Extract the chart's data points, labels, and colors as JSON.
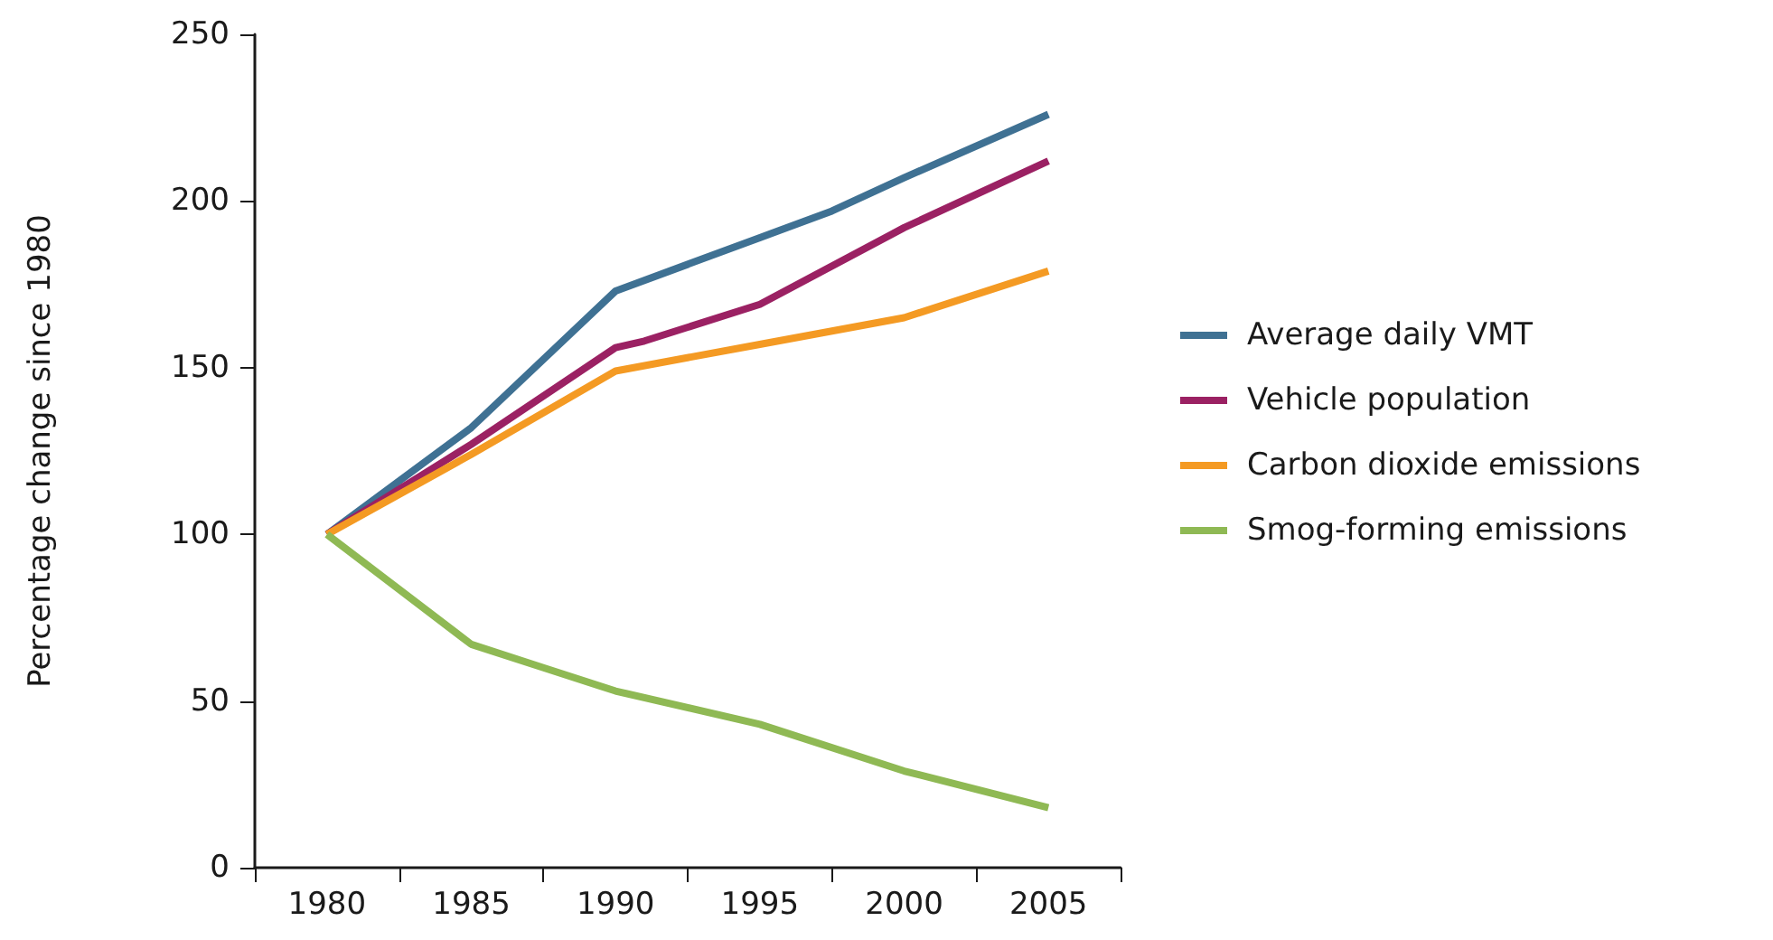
{
  "chart_data": {
    "type": "line",
    "ylabel": "Percentage change since 1980",
    "xlim": [
      1977.5,
      2007.5
    ],
    "xticks": [
      {
        "value": 1977.5,
        "label": null
      },
      1980,
      {
        "value": 1982.5,
        "label": null
      },
      1985,
      {
        "value": 1987.5,
        "label": null
      },
      1990,
      {
        "value": 1992.5,
        "label": null
      },
      1995,
      {
        "value": 1997.5,
        "label": null
      },
      2000,
      {
        "value": 2002.5,
        "label": null
      },
      2005,
      {
        "value": 2007.5,
        "label": null
      }
    ],
    "ylim": [
      0,
      250
    ],
    "yticks": [
      0,
      50,
      100,
      150,
      200,
      250
    ],
    "grid": false,
    "legend": "right",
    "marker": "none",
    "line_style": "solid",
    "series": [
      {
        "name": "Average daily VMT",
        "color": "#3f7193",
        "x": [
          1980,
          1985,
          1990,
          1995,
          1997.5,
          2000,
          2005
        ],
        "values": [
          100,
          132,
          173,
          189,
          197,
          207,
          226
        ]
      },
      {
        "name": "Vehicle population",
        "color": "#9b2163",
        "x": [
          1980,
          1985,
          1990,
          1991,
          1995,
          2000,
          2005
        ],
        "values": [
          100,
          127,
          156,
          158,
          169,
          192,
          212
        ]
      },
      {
        "name": "Carbon dioxide emissions",
        "color": "#f49a23",
        "x": [
          1980,
          1985,
          1990,
          1995,
          2000,
          2005
        ],
        "values": [
          100,
          124,
          149,
          157,
          165,
          179
        ]
      },
      {
        "name": "Smog-forming emissions",
        "color": "#8fb954",
        "x": [
          1980,
          1985,
          1987.5,
          1990,
          1995,
          2000,
          2005
        ],
        "values": [
          100,
          67,
          60,
          53,
          43,
          29,
          18
        ]
      }
    ]
  }
}
